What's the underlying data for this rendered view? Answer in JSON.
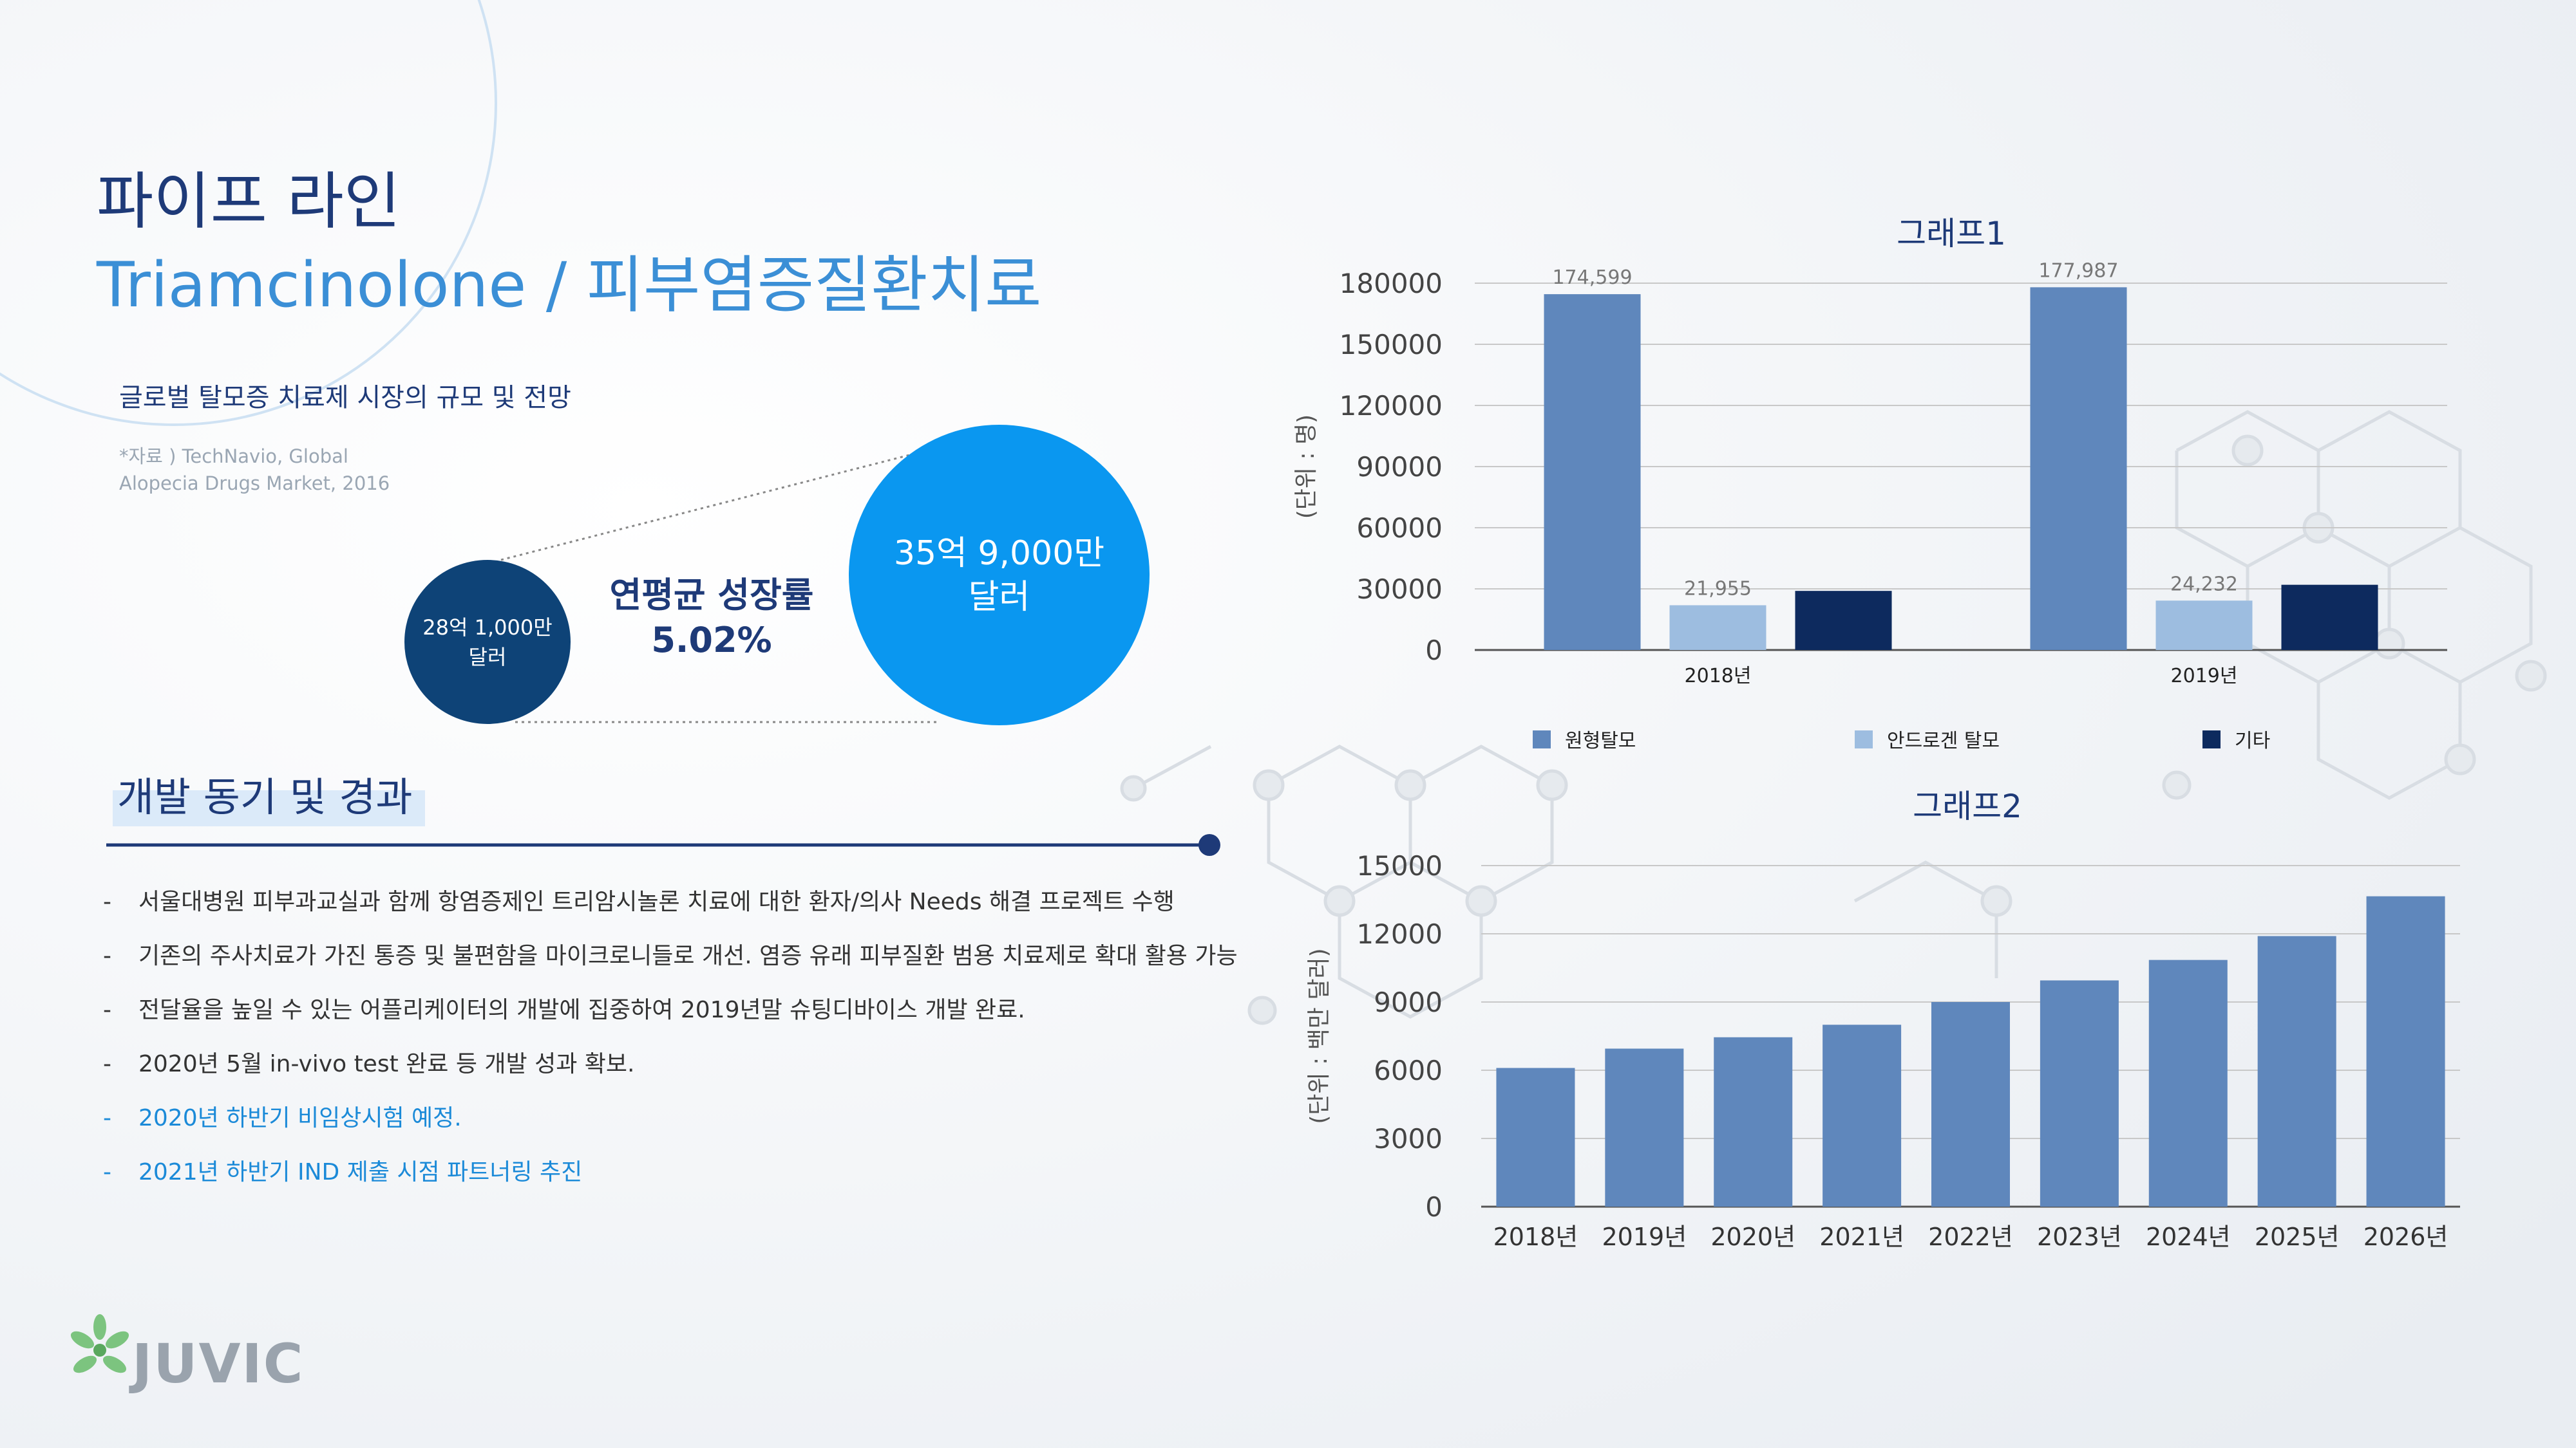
{
  "header": {
    "title": "파이프 라인",
    "subtitle": "Triamcinolone / 피부염증질환치료"
  },
  "market": {
    "heading": "글로벌 탈모증 치료제 시장의 규모 및 전망",
    "source_line1": "*자료 ) TechNavio, Global",
    "source_line2": "Alopecia Drugs Market, 2016",
    "current_line1": "28억 1,000만",
    "current_line2": "달러",
    "cagr_label": "연평균 성장률",
    "cagr_value": "5.02%",
    "future_line1": "35억 9,000만",
    "future_line2": "달러"
  },
  "development": {
    "title": "개발 동기 및 경과",
    "dash": "-",
    "items": [
      "서울대병원 피부과교실과 함께 항염증제인 트리암시놀론 치료에 대한 환자/의사 Needs 해결 프로젝트 수행",
      "기존의 주사치료가 가진 통증 및 불편함을 마이크로니들로 개선. 염증 유래 피부질환 범용 치료제로 확대 활용 가능",
      "전달율을 높일 수 있는 어플리케이터의 개발에 집중하여 2019년말 슈팅디바이스 개발 완료.",
      "2020년 5월 in-vivo test 완료 등 개발 성과 확보.",
      "2020년 하반기 비임상시험 예정.",
      "2021년 하반기 IND 제출 시점 파트너링 추진"
    ]
  },
  "logo": {
    "text": "JUVIC"
  },
  "colors": {
    "navy": "#1e3a78",
    "accent_blue": "#3b8fd6",
    "bar_mid": "#5f87bc",
    "bar_light": "#9dbde0",
    "bar_dark": "#0d2a5e",
    "circle_dark": "#0e4377",
    "circle_bright": "#0a97f0"
  },
  "chart_data": [
    {
      "type": "bar",
      "title": "그래프1",
      "ylabel": "(단위 : 명)",
      "categories": [
        "2018년",
        "2019년"
      ],
      "series": [
        {
          "name": "원형탈모",
          "values": [
            174599,
            177987
          ],
          "labels": [
            "174,599",
            "177,987"
          ]
        },
        {
          "name": "안드로겐 탈모",
          "values": [
            21955,
            24232
          ],
          "labels": [
            "21,955",
            "24,232"
          ]
        },
        {
          "name": "기타",
          "values": [
            29000,
            32000
          ],
          "labels": [
            "",
            ""
          ]
        }
      ],
      "ylim": [
        0,
        180000
      ],
      "yticks": [
        0,
        30000,
        60000,
        90000,
        120000,
        150000,
        180000
      ],
      "grid": true,
      "legend": "bottom"
    },
    {
      "type": "bar",
      "title": "그래프2",
      "ylabel": "(단위 : 백만 달러)",
      "categories": [
        "2018년",
        "2019년",
        "2020년",
        "2021년",
        "2022년",
        "2023년",
        "2024년",
        "2025년",
        "2026년"
      ],
      "values": [
        6100,
        6950,
        7450,
        8000,
        9000,
        9950,
        10850,
        11900,
        13650
      ],
      "ylim": [
        0,
        15000
      ],
      "yticks": [
        0,
        3000,
        6000,
        9000,
        12000,
        15000
      ],
      "grid": true
    }
  ]
}
